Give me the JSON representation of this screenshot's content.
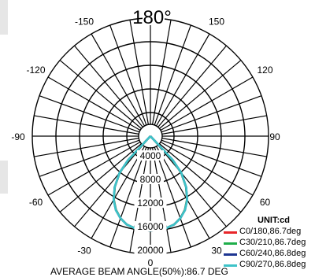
{
  "chart_data": {
    "type": "polar",
    "title": "-180°",
    "angle_labels": [
      {
        "angle": 150,
        "text": "-150"
      },
      {
        "angle": -150,
        "text": "150"
      },
      {
        "angle": 120,
        "text": "-120"
      },
      {
        "angle": -120,
        "text": "120"
      },
      {
        "angle": 90,
        "text": "-90"
      },
      {
        "angle": -90,
        "text": "90"
      },
      {
        "angle": 60,
        "text": "-60"
      },
      {
        "angle": -60,
        "text": "60"
      },
      {
        "angle": 30,
        "text": "-30"
      },
      {
        "angle": -30,
        "text": "30"
      },
      {
        "angle": 180,
        "text": "180°"
      },
      {
        "angle": 0,
        "text": "0"
      }
    ],
    "radial_labels": [
      "4000",
      "8000",
      "12000",
      "16000",
      "20000"
    ],
    "radial_values": [
      4000,
      8000,
      12000,
      16000,
      20000
    ],
    "rlim": [
      0,
      20000
    ],
    "unit_label": "UNIT:cd",
    "series": [
      {
        "name": "C0/180,86.7deg",
        "color": "#e8262a",
        "points": [
          [
            0,
            16000
          ],
          [
            5,
            15950
          ],
          [
            10,
            15800
          ],
          [
            15,
            15500
          ],
          [
            20,
            14800
          ],
          [
            25,
            13800
          ],
          [
            30,
            12400
          ],
          [
            35,
            10500
          ],
          [
            40,
            8100
          ],
          [
            43,
            5500
          ],
          [
            45,
            0
          ]
        ]
      },
      {
        "name": "C30/210,86.7deg",
        "color": "#1fae4a",
        "points": [
          [
            0,
            16000
          ],
          [
            5,
            15950
          ],
          [
            10,
            15800
          ],
          [
            15,
            15500
          ],
          [
            20,
            14800
          ],
          [
            25,
            13800
          ],
          [
            30,
            12400
          ],
          [
            35,
            10500
          ],
          [
            40,
            8100
          ],
          [
            43,
            5500
          ],
          [
            45,
            0
          ]
        ]
      },
      {
        "name": "C60/240,86.8deg",
        "color": "#1d3591",
        "points": [
          [
            0,
            16000
          ],
          [
            5,
            15950
          ],
          [
            10,
            15800
          ],
          [
            15,
            15500
          ],
          [
            20,
            14800
          ],
          [
            25,
            13850
          ],
          [
            30,
            12450
          ],
          [
            35,
            10550
          ],
          [
            40,
            8150
          ],
          [
            43,
            5550
          ],
          [
            45,
            0
          ]
        ]
      },
      {
        "name": "C90/270,86.8deg",
        "color": "#3ec3c8",
        "points": [
          [
            0,
            16000
          ],
          [
            5,
            15950
          ],
          [
            10,
            15800
          ],
          [
            15,
            15500
          ],
          [
            20,
            14800
          ],
          [
            25,
            13850
          ],
          [
            30,
            12450
          ],
          [
            35,
            10550
          ],
          [
            40,
            8150
          ],
          [
            43,
            5550
          ],
          [
            45,
            0
          ]
        ]
      }
    ],
    "beam_angle_label": "AVERAGE BEAM ANGLE(50%):86.7 DEG",
    "grid": true
  }
}
